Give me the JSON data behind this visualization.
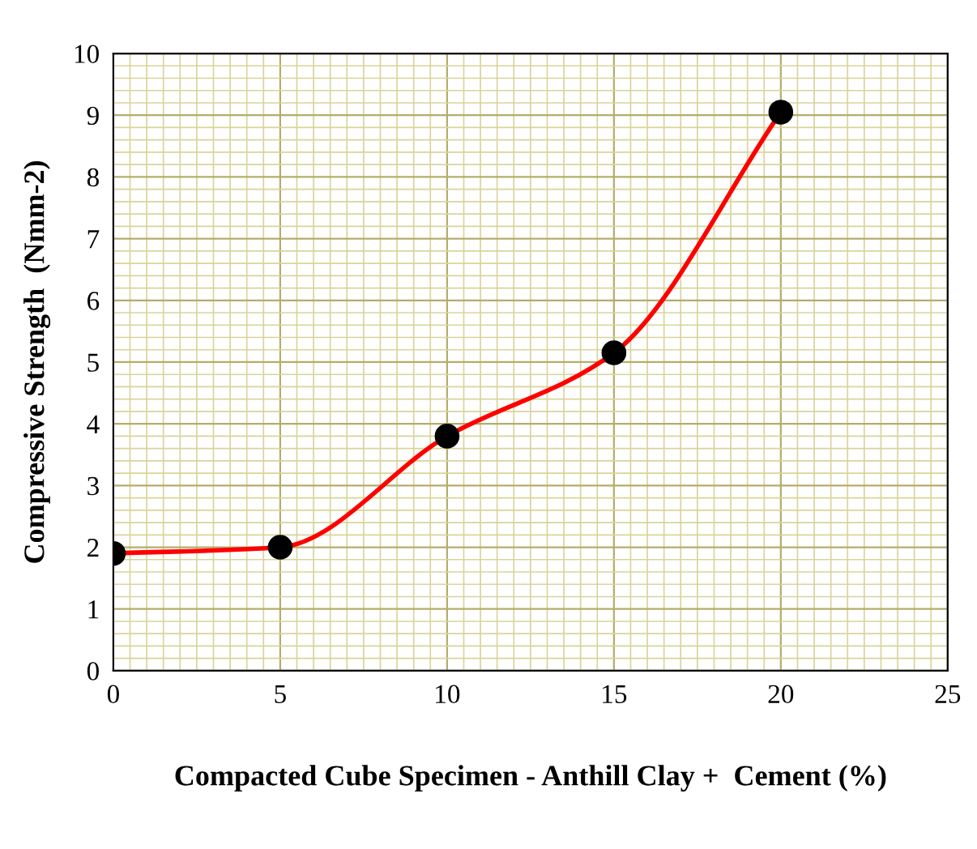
{
  "chart_data": {
    "type": "line",
    "xlabel": "Compacted Cube Specimen - Anthill Clay +  Cement (%)",
    "ylabel": "Compressive Strength  (Nmm-2)",
    "x": [
      0,
      5,
      10,
      15,
      20
    ],
    "series": [
      {
        "color": "#ff0000",
        "values": [
          1.9,
          2.0,
          3.8,
          5.15,
          9.05
        ]
      }
    ],
    "marker": "circle",
    "line_style": "solid",
    "xlim": [
      0,
      25
    ],
    "xticks": [
      0,
      {
        "value": 0.5,
        "label": null
      },
      {
        "value": 1,
        "label": null
      },
      {
        "value": 1.5,
        "label": null
      },
      {
        "value": 2,
        "label": null
      },
      {
        "value": 2.5,
        "label": null
      },
      {
        "value": 3,
        "label": null
      },
      {
        "value": 3.5,
        "label": null
      },
      {
        "value": 4,
        "label": null
      },
      {
        "value": 4.5,
        "label": null
      },
      5,
      {
        "value": 5.5,
        "label": null
      },
      {
        "value": 6,
        "label": null
      },
      {
        "value": 6.5,
        "label": null
      },
      {
        "value": 7,
        "label": null
      },
      {
        "value": 7.5,
        "label": null
      },
      {
        "value": 8,
        "label": null
      },
      {
        "value": 8.5,
        "label": null
      },
      {
        "value": 9,
        "label": null
      },
      {
        "value": 9.5,
        "label": null
      },
      10,
      {
        "value": 10.5,
        "label": null
      },
      {
        "value": 11,
        "label": null
      },
      {
        "value": 11.5,
        "label": null
      },
      {
        "value": 12,
        "label": null
      },
      {
        "value": 12.5,
        "label": null
      },
      {
        "value": 13,
        "label": null
      },
      {
        "value": 13.5,
        "label": null
      },
      {
        "value": 14,
        "label": null
      },
      {
        "value": 14.5,
        "label": null
      },
      15,
      {
        "value": 15.5,
        "label": null
      },
      {
        "value": 16,
        "label": null
      },
      {
        "value": 16.5,
        "label": null
      },
      {
        "value": 17,
        "label": null
      },
      {
        "value": 17.5,
        "label": null
      },
      {
        "value": 18,
        "label": null
      },
      {
        "value": 18.5,
        "label": null
      },
      {
        "value": 19,
        "label": null
      },
      {
        "value": 19.5,
        "label": null
      },
      20,
      {
        "value": 20.5,
        "label": null
      },
      {
        "value": 21,
        "label": null
      },
      {
        "value": 21.5,
        "label": null
      },
      {
        "value": 22,
        "label": null
      },
      {
        "value": 22.5,
        "label": null
      },
      {
        "value": 23,
        "label": null
      },
      {
        "value": 23.5,
        "label": null
      },
      {
        "value": 24,
        "label": null
      },
      {
        "value": 24.5,
        "label": null
      },
      25
    ],
    "ylim": [
      0,
      10
    ],
    "yticks": [
      0,
      {
        "value": 0.2,
        "label": null
      },
      {
        "value": 0.4,
        "label": null
      },
      {
        "value": 0.6,
        "label": null
      },
      {
        "value": 0.8,
        "label": null
      },
      1,
      {
        "value": 1.2,
        "label": null
      },
      {
        "value": 1.4,
        "label": null
      },
      {
        "value": 1.6,
        "label": null
      },
      {
        "value": 1.8,
        "label": null
      },
      2,
      {
        "value": 2.2,
        "label": null
      },
      {
        "value": 2.4,
        "label": null
      },
      {
        "value": 2.6,
        "label": null
      },
      {
        "value": 2.8,
        "label": null
      },
      3,
      {
        "value": 3.2,
        "label": null
      },
      {
        "value": 3.4,
        "label": null
      },
      {
        "value": 3.6,
        "label": null
      },
      {
        "value": 3.8,
        "label": null
      },
      4,
      {
        "value": 4.2,
        "label": null
      },
      {
        "value": 4.4,
        "label": null
      },
      {
        "value": 4.6,
        "label": null
      },
      {
        "value": 4.8,
        "label": null
      },
      5,
      {
        "value": 5.2,
        "label": null
      },
      {
        "value": 5.4,
        "label": null
      },
      {
        "value": 5.6,
        "label": null
      },
      {
        "value": 5.8,
        "label": null
      },
      6,
      {
        "value": 6.2,
        "label": null
      },
      {
        "value": 6.4,
        "label": null
      },
      {
        "value": 6.6,
        "label": null
      },
      {
        "value": 6.8,
        "label": null
      },
      7,
      {
        "value": 7.2,
        "label": null
      },
      {
        "value": 7.4,
        "label": null
      },
      {
        "value": 7.6,
        "label": null
      },
      {
        "value": 7.8,
        "label": null
      },
      8,
      {
        "value": 8.2,
        "label": null
      },
      {
        "value": 8.4,
        "label": null
      },
      {
        "value": 8.6,
        "label": null
      },
      {
        "value": 8.8,
        "label": null
      },
      9,
      {
        "value": 9.2,
        "label": null
      },
      {
        "value": 9.4,
        "label": null
      },
      {
        "value": 9.6,
        "label": null
      },
      {
        "value": 9.8,
        "label": null
      },
      10
    ],
    "grid": true
  }
}
